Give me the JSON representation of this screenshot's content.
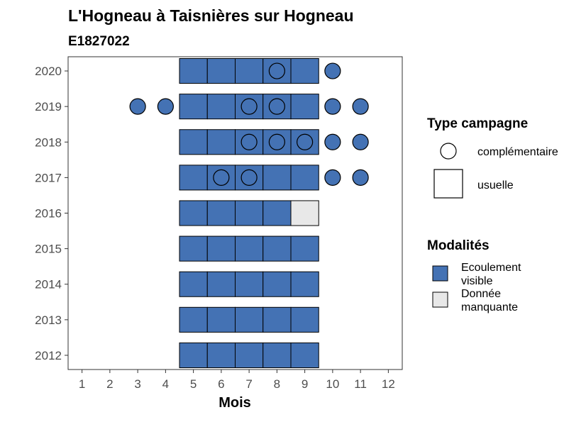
{
  "chart_data": {
    "type": "heatmap",
    "title": "L'Hogneau à Taisnières sur Hogneau",
    "subtitle": "E1827022",
    "xlabel": "Mois",
    "ylabel": "",
    "x_ticks": [
      1,
      2,
      3,
      4,
      5,
      6,
      7,
      8,
      9,
      10,
      11,
      12
    ],
    "y_ticks": [
      2012,
      2013,
      2014,
      2015,
      2016,
      2017,
      2018,
      2019,
      2020
    ],
    "xlim": [
      0.5,
      12.5
    ],
    "ylim": [
      2011.6,
      2020.4
    ],
    "colors": {
      "ecoulement_visible": "#4472b4",
      "donnee_manquante": "#e8e8e8"
    },
    "cells": [
      {
        "year": 2020,
        "month": 5,
        "modalite": "ecoulement_visible",
        "campagne": "usuelle"
      },
      {
        "year": 2020,
        "month": 6,
        "modalite": "ecoulement_visible",
        "campagne": "usuelle"
      },
      {
        "year": 2020,
        "month": 7,
        "modalite": "ecoulement_visible",
        "campagne": "usuelle"
      },
      {
        "year": 2020,
        "month": 8,
        "modalite": "ecoulement_visible",
        "campagne": "usuelle"
      },
      {
        "year": 2020,
        "month": 9,
        "modalite": "ecoulement_visible",
        "campagne": "usuelle"
      },
      {
        "year": 2019,
        "month": 5,
        "modalite": "ecoulement_visible",
        "campagne": "usuelle"
      },
      {
        "year": 2019,
        "month": 6,
        "modalite": "ecoulement_visible",
        "campagne": "usuelle"
      },
      {
        "year": 2019,
        "month": 7,
        "modalite": "ecoulement_visible",
        "campagne": "usuelle"
      },
      {
        "year": 2019,
        "month": 8,
        "modalite": "ecoulement_visible",
        "campagne": "usuelle"
      },
      {
        "year": 2019,
        "month": 9,
        "modalite": "ecoulement_visible",
        "campagne": "usuelle"
      },
      {
        "year": 2018,
        "month": 5,
        "modalite": "ecoulement_visible",
        "campagne": "usuelle"
      },
      {
        "year": 2018,
        "month": 6,
        "modalite": "ecoulement_visible",
        "campagne": "usuelle"
      },
      {
        "year": 2018,
        "month": 7,
        "modalite": "ecoulement_visible",
        "campagne": "usuelle"
      },
      {
        "year": 2018,
        "month": 8,
        "modalite": "ecoulement_visible",
        "campagne": "usuelle"
      },
      {
        "year": 2018,
        "month": 9,
        "modalite": "ecoulement_visible",
        "campagne": "usuelle"
      },
      {
        "year": 2017,
        "month": 5,
        "modalite": "ecoulement_visible",
        "campagne": "usuelle"
      },
      {
        "year": 2017,
        "month": 6,
        "modalite": "ecoulement_visible",
        "campagne": "usuelle"
      },
      {
        "year": 2017,
        "month": 7,
        "modalite": "ecoulement_visible",
        "campagne": "usuelle"
      },
      {
        "year": 2017,
        "month": 8,
        "modalite": "ecoulement_visible",
        "campagne": "usuelle"
      },
      {
        "year": 2017,
        "month": 9,
        "modalite": "ecoulement_visible",
        "campagne": "usuelle"
      },
      {
        "year": 2016,
        "month": 5,
        "modalite": "ecoulement_visible",
        "campagne": "usuelle"
      },
      {
        "year": 2016,
        "month": 6,
        "modalite": "ecoulement_visible",
        "campagne": "usuelle"
      },
      {
        "year": 2016,
        "month": 7,
        "modalite": "ecoulement_visible",
        "campagne": "usuelle"
      },
      {
        "year": 2016,
        "month": 8,
        "modalite": "ecoulement_visible",
        "campagne": "usuelle"
      },
      {
        "year": 2016,
        "month": 9,
        "modalite": "donnee_manquante",
        "campagne": "usuelle"
      },
      {
        "year": 2015,
        "month": 5,
        "modalite": "ecoulement_visible",
        "campagne": "usuelle"
      },
      {
        "year": 2015,
        "month": 6,
        "modalite": "ecoulement_visible",
        "campagne": "usuelle"
      },
      {
        "year": 2015,
        "month": 7,
        "modalite": "ecoulement_visible",
        "campagne": "usuelle"
      },
      {
        "year": 2015,
        "month": 8,
        "modalite": "ecoulement_visible",
        "campagne": "usuelle"
      },
      {
        "year": 2015,
        "month": 9,
        "modalite": "ecoulement_visible",
        "campagne": "usuelle"
      },
      {
        "year": 2014,
        "month": 5,
        "modalite": "ecoulement_visible",
        "campagne": "usuelle"
      },
      {
        "year": 2014,
        "month": 6,
        "modalite": "ecoulement_visible",
        "campagne": "usuelle"
      },
      {
        "year": 2014,
        "month": 7,
        "modalite": "ecoulement_visible",
        "campagne": "usuelle"
      },
      {
        "year": 2014,
        "month": 8,
        "modalite": "ecoulement_visible",
        "campagne": "usuelle"
      },
      {
        "year": 2014,
        "month": 9,
        "modalite": "ecoulement_visible",
        "campagne": "usuelle"
      },
      {
        "year": 2013,
        "month": 5,
        "modalite": "ecoulement_visible",
        "campagne": "usuelle"
      },
      {
        "year": 2013,
        "month": 6,
        "modalite": "ecoulement_visible",
        "campagne": "usuelle"
      },
      {
        "year": 2013,
        "month": 7,
        "modalite": "ecoulement_visible",
        "campagne": "usuelle"
      },
      {
        "year": 2013,
        "month": 8,
        "modalite": "ecoulement_visible",
        "campagne": "usuelle"
      },
      {
        "year": 2013,
        "month": 9,
        "modalite": "ecoulement_visible",
        "campagne": "usuelle"
      },
      {
        "year": 2012,
        "month": 5,
        "modalite": "ecoulement_visible",
        "campagne": "usuelle"
      },
      {
        "year": 2012,
        "month": 6,
        "modalite": "ecoulement_visible",
        "campagne": "usuelle"
      },
      {
        "year": 2012,
        "month": 7,
        "modalite": "ecoulement_visible",
        "campagne": "usuelle"
      },
      {
        "year": 2012,
        "month": 8,
        "modalite": "ecoulement_visible",
        "campagne": "usuelle"
      },
      {
        "year": 2012,
        "month": 9,
        "modalite": "ecoulement_visible",
        "campagne": "usuelle"
      }
    ],
    "points": [
      {
        "year": 2020,
        "month": 8,
        "filled": false
      },
      {
        "year": 2020,
        "month": 10,
        "filled": true
      },
      {
        "year": 2019,
        "month": 3,
        "filled": true
      },
      {
        "year": 2019,
        "month": 4,
        "filled": true
      },
      {
        "year": 2019,
        "month": 7,
        "filled": false
      },
      {
        "year": 2019,
        "month": 8,
        "filled": false
      },
      {
        "year": 2019,
        "month": 10,
        "filled": true
      },
      {
        "year": 2019,
        "month": 11,
        "filled": true
      },
      {
        "year": 2018,
        "month": 7,
        "filled": false
      },
      {
        "year": 2018,
        "month": 8,
        "filled": false
      },
      {
        "year": 2018,
        "month": 9,
        "filled": false
      },
      {
        "year": 2018,
        "month": 10,
        "filled": true
      },
      {
        "year": 2018,
        "month": 11,
        "filled": true
      },
      {
        "year": 2017,
        "month": 6,
        "filled": false
      },
      {
        "year": 2017,
        "month": 7,
        "filled": false
      },
      {
        "year": 2017,
        "month": 10,
        "filled": true
      },
      {
        "year": 2017,
        "month": 11,
        "filled": true
      }
    ],
    "legend_campagne": {
      "title": "Type campagne",
      "items": [
        {
          "key": "complementaire",
          "label": "complémentaire"
        },
        {
          "key": "usuelle",
          "label": "usuelle"
        }
      ]
    },
    "legend_modalites": {
      "title": "Modalités",
      "items": [
        {
          "key": "ecoulement_visible",
          "label_line1": "Ecoulement",
          "label_line2": "visible"
        },
        {
          "key": "donnee_manquante",
          "label_line1": "Donnée",
          "label_line2": "manquante"
        }
      ]
    },
    "legend_placement": "right",
    "grid": false
  }
}
